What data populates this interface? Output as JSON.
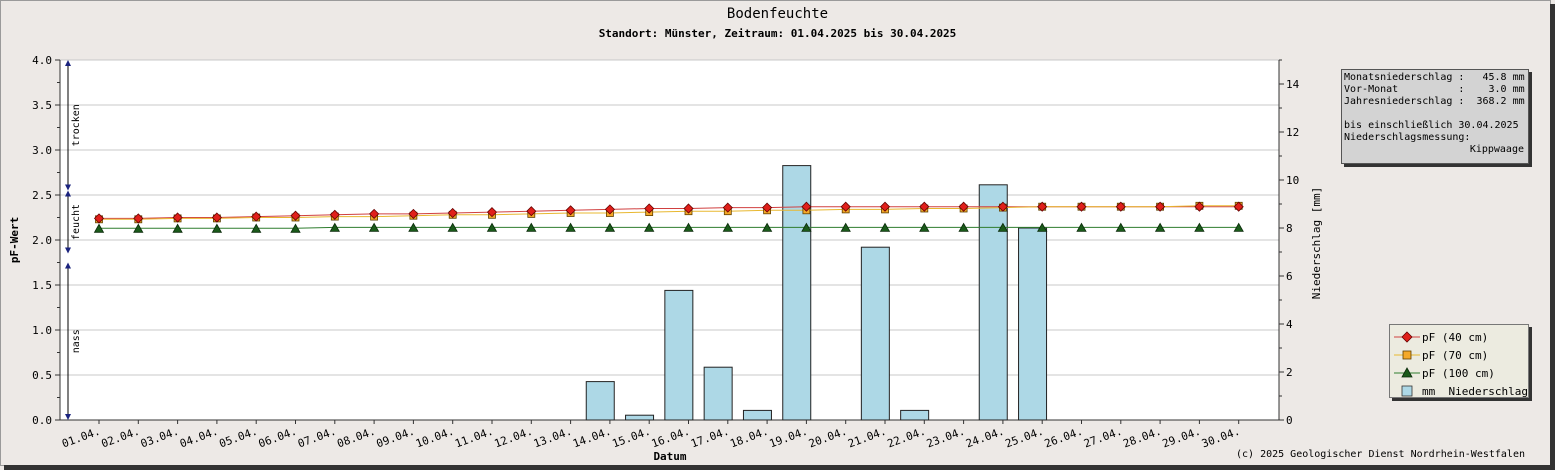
{
  "title": "Bodenfeuchte",
  "subtitle": "Standort: Münster, Zeitraum: 01.04.2025 bis 30.04.2025",
  "copyright": "(c) 2025 Geologischer Dienst Nordrhein-Westfalen",
  "info": {
    "monat_label": "Monatsniederschlag :",
    "monat_value": "45.8 mm",
    "vormonat_label": "Vor-Monat          :",
    "vormonat_value": "3.0 mm",
    "jahr_label": "Jahresniederschlag :",
    "jahr_value": "368.2 mm",
    "bis_line": "bis einschließlich 30.04.2025",
    "messung_label": "Niederschlagsmessung:",
    "messung_value": "Kippwaage"
  },
  "legend": {
    "pf40": "pF (40 cm)",
    "pf70": "pF (70 cm)",
    "pf100": "pF (100 cm)",
    "rain": "mm  Niederschlag"
  },
  "chart_data": {
    "type": "line",
    "xlabel": "Datum",
    "ylabel": "pF-Wert",
    "y2label": "Niederschlag [mm]",
    "ylim": [
      0,
      4
    ],
    "y2lim": [
      0,
      15
    ],
    "yticks": [
      "0.0",
      "0.5",
      "1.0",
      "1.5",
      "2.0",
      "2.5",
      "3.0",
      "3.5",
      "4.0"
    ],
    "y2ticks": [
      "0",
      "2",
      "4",
      "6",
      "8",
      "10",
      "12",
      "14"
    ],
    "zones": [
      {
        "label": "trocken",
        "from": 2.55,
        "to": 4.0
      },
      {
        "label": "feucht",
        "from": 1.85,
        "to": 2.55
      },
      {
        "label": "nass",
        "from": 0.0,
        "to": 1.75
      }
    ],
    "categories": [
      "01.04.",
      "02.04.",
      "03.04.",
      "04.04.",
      "05.04.",
      "06.04.",
      "07.04.",
      "08.04.",
      "09.04.",
      "10.04.",
      "11.04.",
      "12.04.",
      "13.04.",
      "14.04.",
      "15.04.",
      "16.04.",
      "17.04.",
      "18.04.",
      "19.04.",
      "20.04.",
      "21.04.",
      "22.04.",
      "23.04.",
      "24.04.",
      "25.04.",
      "26.04.",
      "27.04.",
      "28.04.",
      "29.04.",
      "30.04."
    ],
    "series": [
      {
        "name": "pF (40 cm)",
        "color": "#e0201a",
        "line": "#d04040",
        "marker": "diamond",
        "values": [
          2.24,
          2.24,
          2.25,
          2.25,
          2.26,
          2.27,
          2.28,
          2.29,
          2.29,
          2.3,
          2.31,
          2.32,
          2.33,
          2.34,
          2.35,
          2.35,
          2.36,
          2.36,
          2.37,
          2.37,
          2.37,
          2.37,
          2.37,
          2.37,
          2.37,
          2.37,
          2.37,
          2.37,
          2.37,
          2.37
        ]
      },
      {
        "name": "pF (70 cm)",
        "color": "#f4a828",
        "line": "#e8b830",
        "marker": "square",
        "values": [
          2.23,
          2.23,
          2.24,
          2.24,
          2.25,
          2.25,
          2.26,
          2.26,
          2.27,
          2.28,
          2.28,
          2.29,
          2.3,
          2.3,
          2.31,
          2.32,
          2.32,
          2.33,
          2.33,
          2.34,
          2.34,
          2.35,
          2.35,
          2.36,
          2.37,
          2.37,
          2.37,
          2.37,
          2.38,
          2.38
        ]
      },
      {
        "name": "pF (100 cm)",
        "color": "#1a5a1a",
        "line": "#2e7d2e",
        "marker": "triangle",
        "values": [
          2.13,
          2.13,
          2.13,
          2.13,
          2.13,
          2.13,
          2.14,
          2.14,
          2.14,
          2.14,
          2.14,
          2.14,
          2.14,
          2.14,
          2.14,
          2.14,
          2.14,
          2.14,
          2.14,
          2.14,
          2.14,
          2.14,
          2.14,
          2.14,
          2.14,
          2.14,
          2.14,
          2.14,
          2.14,
          2.14
        ]
      }
    ],
    "precip": {
      "name": "mm  Niederschlag",
      "color": "#add8e6",
      "values": [
        0,
        0,
        0,
        0,
        0,
        0,
        0,
        0,
        0,
        0,
        0,
        0,
        1.6,
        0.2,
        5.4,
        2.2,
        0.4,
        10.6,
        0,
        7.2,
        0.4,
        0,
        9.8,
        8.0,
        0,
        0,
        0,
        0,
        0,
        0
      ]
    },
    "grid": true,
    "legend_position": "bottom-right"
  }
}
